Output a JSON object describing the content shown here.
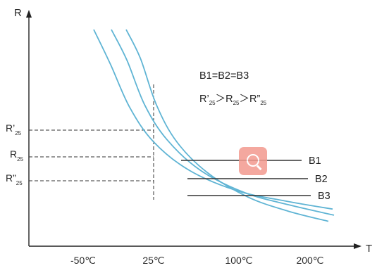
{
  "chart_data": {
    "type": "line",
    "xlabel": "T",
    "ylabel": "R",
    "x_ticks": [
      "-50℃",
      "25℃",
      "100℃",
      "200℃"
    ],
    "y_markers": [
      {
        "main": "R’",
        "sub": "25"
      },
      {
        "main": "R",
        "sub": "25"
      },
      {
        "main": "R”",
        "sub": "25"
      }
    ],
    "series": [
      {
        "name": "B1",
        "points": [
          [
            0.0,
            1.0
          ],
          [
            0.07,
            0.83
          ],
          [
            0.15,
            0.62
          ],
          [
            0.25,
            0.45
          ],
          [
            0.4,
            0.31
          ],
          [
            0.6,
            0.21
          ],
          [
            0.8,
            0.16
          ],
          [
            1.0,
            0.12
          ]
        ]
      },
      {
        "name": "B2",
        "points": [
          [
            0.0,
            1.0
          ],
          [
            0.07,
            0.85
          ],
          [
            0.15,
            0.63
          ],
          [
            0.25,
            0.46
          ],
          [
            0.4,
            0.31
          ],
          [
            0.6,
            0.2
          ],
          [
            0.8,
            0.14
          ],
          [
            1.0,
            0.09
          ]
        ]
      },
      {
        "name": "B3",
        "points": [
          [
            0.0,
            1.0
          ],
          [
            0.07,
            0.86
          ],
          [
            0.15,
            0.63
          ],
          [
            0.25,
            0.45
          ],
          [
            0.4,
            0.3
          ],
          [
            0.6,
            0.18
          ],
          [
            0.8,
            0.11
          ],
          [
            1.0,
            0.06
          ]
        ]
      }
    ],
    "annotations": {
      "line1": "B1=B2=B3",
      "line2": [
        {
          "text": "R’"
        },
        {
          "sub": "25"
        },
        {
          "text": "＞R"
        },
        {
          "sub": "25"
        },
        {
          "text": "＞R”"
        },
        {
          "sub": "25"
        }
      ]
    },
    "colors": {
      "curve": "#5fb4d4",
      "axis": "#222222",
      "text": "#2a2a2a"
    },
    "grid": false,
    "legend": "none"
  },
  "watermark_icon": "search-icon"
}
